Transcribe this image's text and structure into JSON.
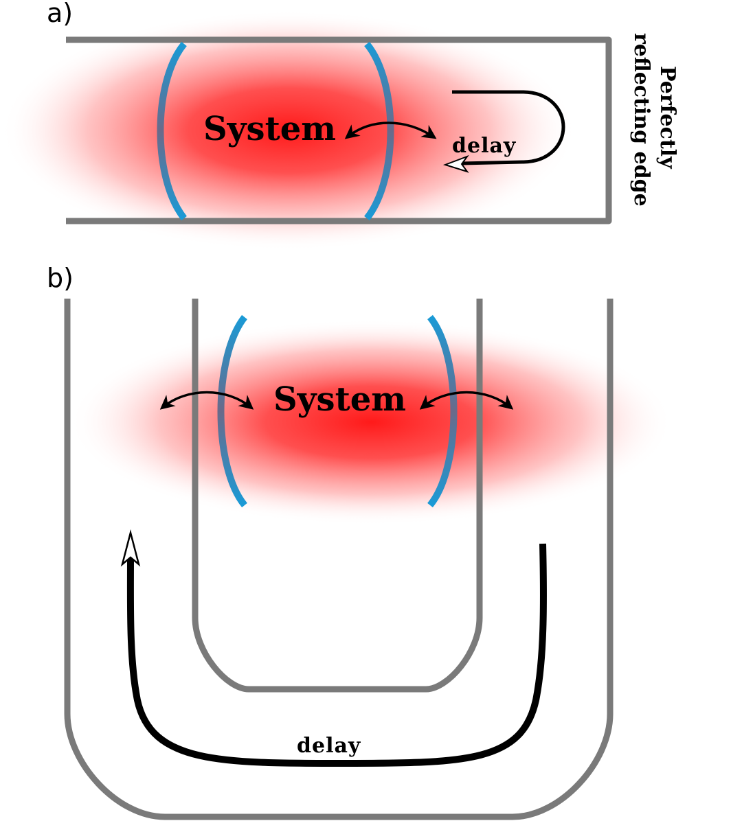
{
  "panel_a": {
    "label": "a)",
    "system_label": "System",
    "delay_label": "delay",
    "edge_label_line1": "Perfectly",
    "edge_label_line2": "reflecting edge"
  },
  "panel_b": {
    "label": "b)",
    "system_label": "System",
    "delay_label": "delay"
  },
  "colors": {
    "glow": "#ff1a1a",
    "mirror_end": "#1a9ad6",
    "mirror_mid": "#6a6a8a",
    "wall": "#7a7a7a"
  }
}
